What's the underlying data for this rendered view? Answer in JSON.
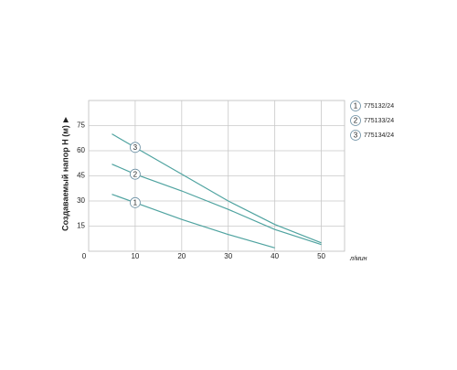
{
  "chart_data": {
    "type": "line",
    "y_label": "Создаваемый напор Н (м)",
    "x_label": "л/мин",
    "xlim": [
      0,
      55
    ],
    "xticks": [
      0,
      10,
      20,
      30,
      40,
      50
    ],
    "ylim": [
      0,
      90
    ],
    "yticks": [
      15,
      30,
      45,
      60,
      75
    ],
    "grid": true,
    "legend": "right",
    "series": [
      {
        "name": "775132/24",
        "label": "1",
        "color": "#4fa3a0",
        "x": [
          5,
          10,
          20,
          30,
          40
        ],
        "values": [
          34,
          29,
          19,
          10,
          2
        ]
      },
      {
        "name": "775133/24",
        "label": "2",
        "color": "#4fa3a0",
        "x": [
          5,
          10,
          20,
          30,
          40,
          50
        ],
        "values": [
          52,
          46,
          36,
          25,
          13,
          4
        ]
      },
      {
        "name": "775134/24",
        "label": "3",
        "color": "#4fa3a0",
        "x": [
          5,
          10,
          20,
          30,
          40,
          50
        ],
        "values": [
          70,
          62,
          46,
          30,
          16,
          5
        ]
      }
    ]
  }
}
